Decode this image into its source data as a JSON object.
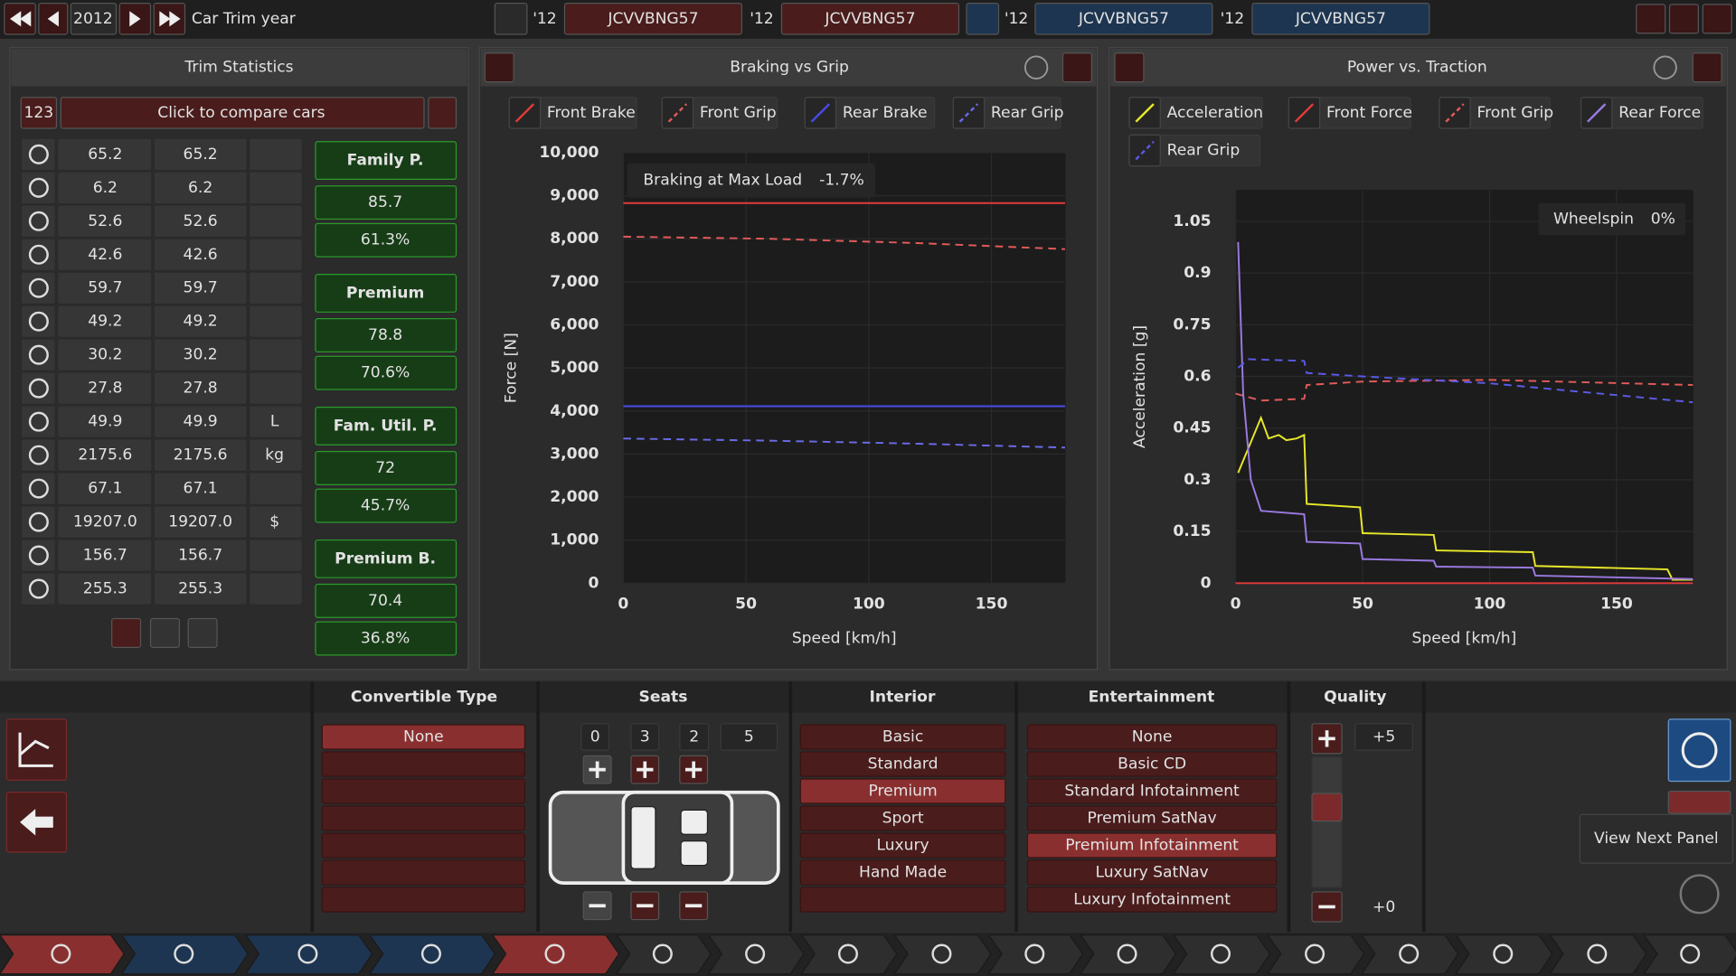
{
  "top_bar": {
    "year": "2012",
    "label": "Car Trim year",
    "cars": [
      {
        "year": "'12",
        "name": "JCVVBNG57"
      },
      {
        "year": "'12",
        "name": "JCVVBNG57"
      },
      {
        "year": "'12",
        "name": "JCVVBNG57"
      },
      {
        "year": "'12",
        "name": "JCVVBNG57"
      }
    ]
  },
  "trim_statistics": {
    "title": "Trim Statistics",
    "count": "123",
    "compare": "Click to compare cars",
    "rows": [
      [
        "65.2",
        "65.2"
      ],
      [
        "6.2",
        "6.2"
      ],
      [
        "52.6",
        "52.6"
      ],
      [
        "42.6",
        "42.6"
      ],
      [
        "59.7",
        "59.7"
      ],
      [
        "49.2",
        "49.2"
      ],
      [
        "30.2",
        "30.2"
      ],
      [
        "27.8",
        "27.8"
      ],
      [
        "49.9",
        "49.9",
        "L"
      ],
      [
        "2175.6",
        "2175.6",
        "kg"
      ],
      [
        "67.1",
        "67.1"
      ],
      [
        "19207.0",
        "19207.0",
        "$"
      ],
      [
        "156.7",
        "156.7"
      ],
      [
        "255.3",
        "255.3"
      ]
    ],
    "groups": [
      {
        "name": "Family P.",
        "score": "85.7",
        "share": "61.3%"
      },
      {
        "name": "Premium",
        "score": "78.8",
        "share": "70.6%"
      },
      {
        "name": "Fam. Util. P.",
        "score": "72",
        "share": "45.7%"
      },
      {
        "name": "Premium B.",
        "score": "70.4",
        "share": "36.8%"
      }
    ]
  },
  "chart_data": [
    {
      "type": "line",
      "title": "Braking vs Grip",
      "x_label": "Speed [km/h]",
      "y_label": "Force [N]",
      "annotation": {
        "label": "Braking at Max Load",
        "value": "-1.7%"
      },
      "xlim": [
        0,
        180
      ],
      "xticks": [
        0,
        50,
        100,
        150
      ],
      "ylim": [
        0,
        10000
      ],
      "yticks": [
        0,
        {
          "value": 1000,
          "label": "1,000"
        },
        {
          "value": 2000,
          "label": "2,000"
        },
        {
          "value": 3000,
          "label": "3,000"
        },
        {
          "value": 4000,
          "label": "4,000"
        },
        {
          "value": 5000,
          "label": "5,000"
        },
        {
          "value": 6000,
          "label": "6,000"
        },
        {
          "value": 7000,
          "label": "7,000"
        },
        {
          "value": 8000,
          "label": "8,000"
        },
        {
          "value": 9000,
          "label": "9,000"
        },
        {
          "value": 10000,
          "label": "10,000"
        }
      ],
      "grid": true,
      "series": [
        {
          "name": "Front Brake",
          "color": "#e23a3a",
          "dash": false,
          "x": [
            0,
            60,
            120,
            180
          ],
          "values": [
            8830,
            8830,
            8830,
            8830
          ]
        },
        {
          "name": "Front Grip",
          "color": "#e25a5a",
          "dash": true,
          "x": [
            0,
            60,
            120,
            180
          ],
          "values": [
            8050,
            8000,
            7900,
            7760
          ]
        },
        {
          "name": "Rear Brake",
          "color": "#4a4ae8",
          "dash": false,
          "x": [
            0,
            60,
            120,
            180
          ],
          "values": [
            4110,
            4110,
            4110,
            4110
          ]
        },
        {
          "name": "Rear Grip",
          "color": "#6a6ae8",
          "dash": true,
          "x": [
            0,
            60,
            120,
            180
          ],
          "values": [
            3360,
            3310,
            3240,
            3150
          ]
        }
      ]
    },
    {
      "type": "line",
      "title": "Power vs. Traction",
      "x_label": "Speed [km/h]",
      "y_label": "Acceleration [g]",
      "annotation": {
        "label": "Wheelspin",
        "value": "0%"
      },
      "xlim": [
        0,
        180
      ],
      "xticks": [
        0,
        50,
        100,
        150
      ],
      "ylim": [
        0,
        1.14
      ],
      "yticks": [
        0,
        0.15,
        0.3,
        0.45,
        0.6,
        0.75,
        0.9,
        1.05
      ],
      "grid": true,
      "series": [
        {
          "name": "Acceleration",
          "color": "#e8e82a",
          "dash": false,
          "x": [
            1,
            10,
            13,
            17,
            20,
            24,
            27,
            28,
            49,
            50,
            78,
            79,
            117,
            118,
            170,
            172,
            180
          ],
          "values": [
            0.32,
            0.48,
            0.42,
            0.43,
            0.415,
            0.42,
            0.43,
            0.23,
            0.22,
            0.145,
            0.14,
            0.095,
            0.09,
            0.05,
            0.04,
            0.01,
            0.01
          ]
        },
        {
          "name": "Front Force",
          "color": "#e23a3a",
          "dash": false,
          "x": [
            0,
            180
          ],
          "values": [
            0,
            0
          ]
        },
        {
          "name": "Front Grip",
          "color": "#e25a5a",
          "dash": true,
          "x": [
            0,
            10,
            27,
            28,
            50,
            100,
            180
          ],
          "values": [
            0.55,
            0.53,
            0.535,
            0.575,
            0.585,
            0.59,
            0.575
          ]
        },
        {
          "name": "Rear Force",
          "color": "#9a7ae0",
          "dash": false,
          "x": [
            1,
            3,
            6,
            10,
            27,
            28,
            49,
            50,
            78,
            79,
            117,
            118,
            180
          ],
          "values": [
            0.99,
            0.55,
            0.3,
            0.21,
            0.2,
            0.12,
            0.115,
            0.07,
            0.065,
            0.048,
            0.045,
            0.022,
            0.012
          ]
        },
        {
          "name": "Rear Grip",
          "color": "#5a5ae8",
          "dash": true,
          "x": [
            1,
            5,
            27,
            28,
            50,
            100,
            180
          ],
          "values": [
            0.625,
            0.65,
            0.645,
            0.61,
            0.6,
            0.58,
            0.525
          ]
        }
      ]
    }
  ],
  "panels": {
    "convertible": {
      "title": "Convertible Type",
      "options": [
        "None"
      ],
      "selected": 0
    },
    "seats": {
      "title": "Seats",
      "counts": [
        "0",
        "3",
        "2",
        "5"
      ]
    },
    "interior": {
      "title": "Interior",
      "options": [
        "Basic",
        "Standard",
        "Premium",
        "Sport",
        "Luxury",
        "Hand Made"
      ],
      "selected": 2
    },
    "entertainment": {
      "title": "Entertainment",
      "options": [
        "None",
        "Basic CD",
        "Standard Infotainment",
        "Premium SatNav",
        "Premium Infotainment",
        "Luxury SatNav",
        "Luxury Infotainment"
      ],
      "selected": 4
    },
    "quality": {
      "title": "Quality",
      "max": "+5",
      "min": "+0"
    }
  },
  "tooltip": "View Next Panel"
}
